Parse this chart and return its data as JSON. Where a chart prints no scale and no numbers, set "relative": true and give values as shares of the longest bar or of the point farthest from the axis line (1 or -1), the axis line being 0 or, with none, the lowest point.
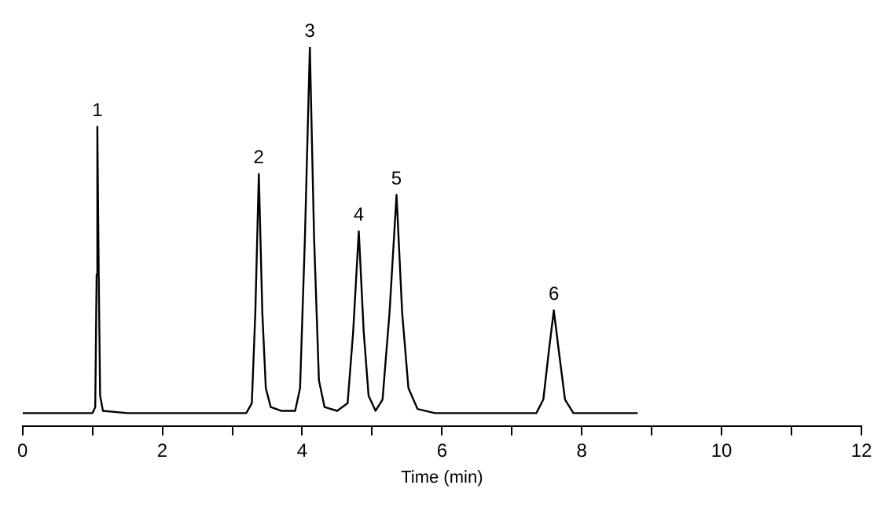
{
  "chart_data": {
    "type": "line",
    "relative": true,
    "xlabel": "Time (min)",
    "xlim": [
      0,
      12
    ],
    "xticks": [
      0,
      {
        "value": 1,
        "label": null
      },
      2,
      {
        "value": 3,
        "label": null
      },
      4,
      {
        "value": 5,
        "label": null
      },
      6,
      {
        "value": 7,
        "label": null
      },
      8,
      {
        "value": 9,
        "label": null
      },
      10,
      {
        "value": 11,
        "label": null
      },
      12
    ],
    "grid": false,
    "legend": false,
    "marker": "none",
    "line_style": "solid",
    "series": [
      {
        "color": "#000000",
        "x": [
          0,
          1.0,
          1.04,
          1.06,
          1.07,
          1.09,
          1.11,
          1.15,
          1.5,
          3.2,
          3.28,
          3.33,
          3.38,
          3.43,
          3.48,
          3.55,
          3.7,
          3.9,
          3.97,
          4.04,
          4.11,
          4.17,
          4.24,
          4.32,
          4.5,
          4.65,
          4.73,
          4.81,
          4.88,
          4.95,
          5.05,
          5.15,
          5.25,
          5.35,
          5.43,
          5.52,
          5.65,
          5.9,
          7.35,
          7.45,
          7.53,
          7.6,
          7.67,
          7.76,
          7.88,
          8.8
        ],
        "values": [
          0.034,
          0.034,
          0.05,
          0.4,
          0.79,
          0.4,
          0.08,
          0.04,
          0.034,
          0.034,
          0.06,
          0.3,
          0.665,
          0.3,
          0.1,
          0.05,
          0.04,
          0.04,
          0.1,
          0.5,
          1,
          0.5,
          0.12,
          0.05,
          0.04,
          0.06,
          0.25,
          0.514,
          0.25,
          0.08,
          0.04,
          0.07,
          0.3,
          0.61,
          0.3,
          0.1,
          0.045,
          0.034,
          0.034,
          0.07,
          0.2,
          0.305,
          0.2,
          0.07,
          0.034,
          0.034
        ]
      }
    ],
    "annotations": [
      {
        "text": "1",
        "x": 1.07,
        "y": 0.79
      },
      {
        "text": "2",
        "x": 3.38,
        "y": 0.665
      },
      {
        "text": "3",
        "x": 4.11,
        "y": 1
      },
      {
        "text": "4",
        "x": 4.81,
        "y": 0.514
      },
      {
        "text": "5",
        "x": 5.35,
        "y": 0.61
      },
      {
        "text": "6",
        "x": 7.6,
        "y": 0.305
      }
    ]
  }
}
